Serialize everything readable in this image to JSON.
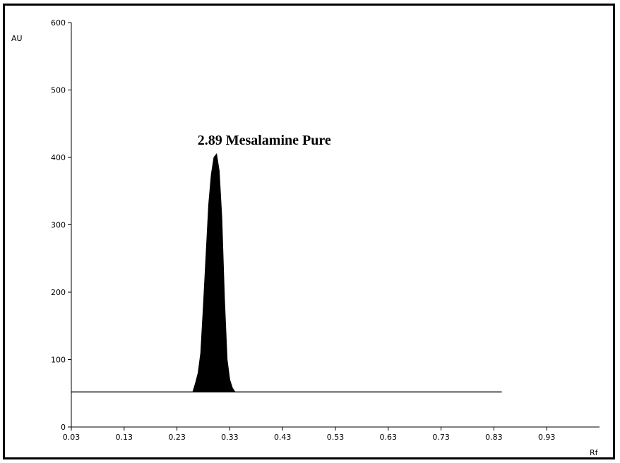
{
  "chart_data": {
    "type": "area",
    "title": "",
    "xlabel": "Rf",
    "ylabel": "AU",
    "xlim": [
      0.03,
      1.03
    ],
    "ylim": [
      0,
      600
    ],
    "x_ticks": [
      0.03,
      0.13,
      0.23,
      0.33,
      0.43,
      0.53,
      0.63,
      0.73,
      0.83,
      0.93
    ],
    "x_tick_labels": [
      "0.03",
      "0.13",
      "0.23",
      "0.33",
      "0.43",
      "0.53",
      "0.63",
      "0.73",
      "0.83",
      "0.93"
    ],
    "y_ticks": [
      0,
      100,
      200,
      300,
      400,
      500,
      600
    ],
    "y_tick_labels": [
      "0",
      "100",
      "200",
      "300",
      "400",
      "500",
      "600"
    ],
    "baseline": {
      "y": 52,
      "x_start": 0.03,
      "x_end": 0.845
    },
    "series": [
      {
        "x": [
          0.26,
          0.265,
          0.27,
          0.275,
          0.28,
          0.285,
          0.29,
          0.295,
          0.3,
          0.305,
          0.31,
          0.315,
          0.32,
          0.325,
          0.33,
          0.335,
          0.34
        ],
        "y": [
          52,
          65,
          80,
          110,
          180,
          255,
          330,
          375,
          400,
          405,
          380,
          310,
          190,
          100,
          70,
          58,
          52
        ]
      }
    ],
    "annotations": [
      {
        "label": "2.89 Mesalamine Pure",
        "x": 0.305,
        "y": 415
      }
    ],
    "grid": false,
    "colors": {
      "peak_fill": "#000000",
      "axis": "#000000",
      "baseline": "#000000"
    }
  }
}
